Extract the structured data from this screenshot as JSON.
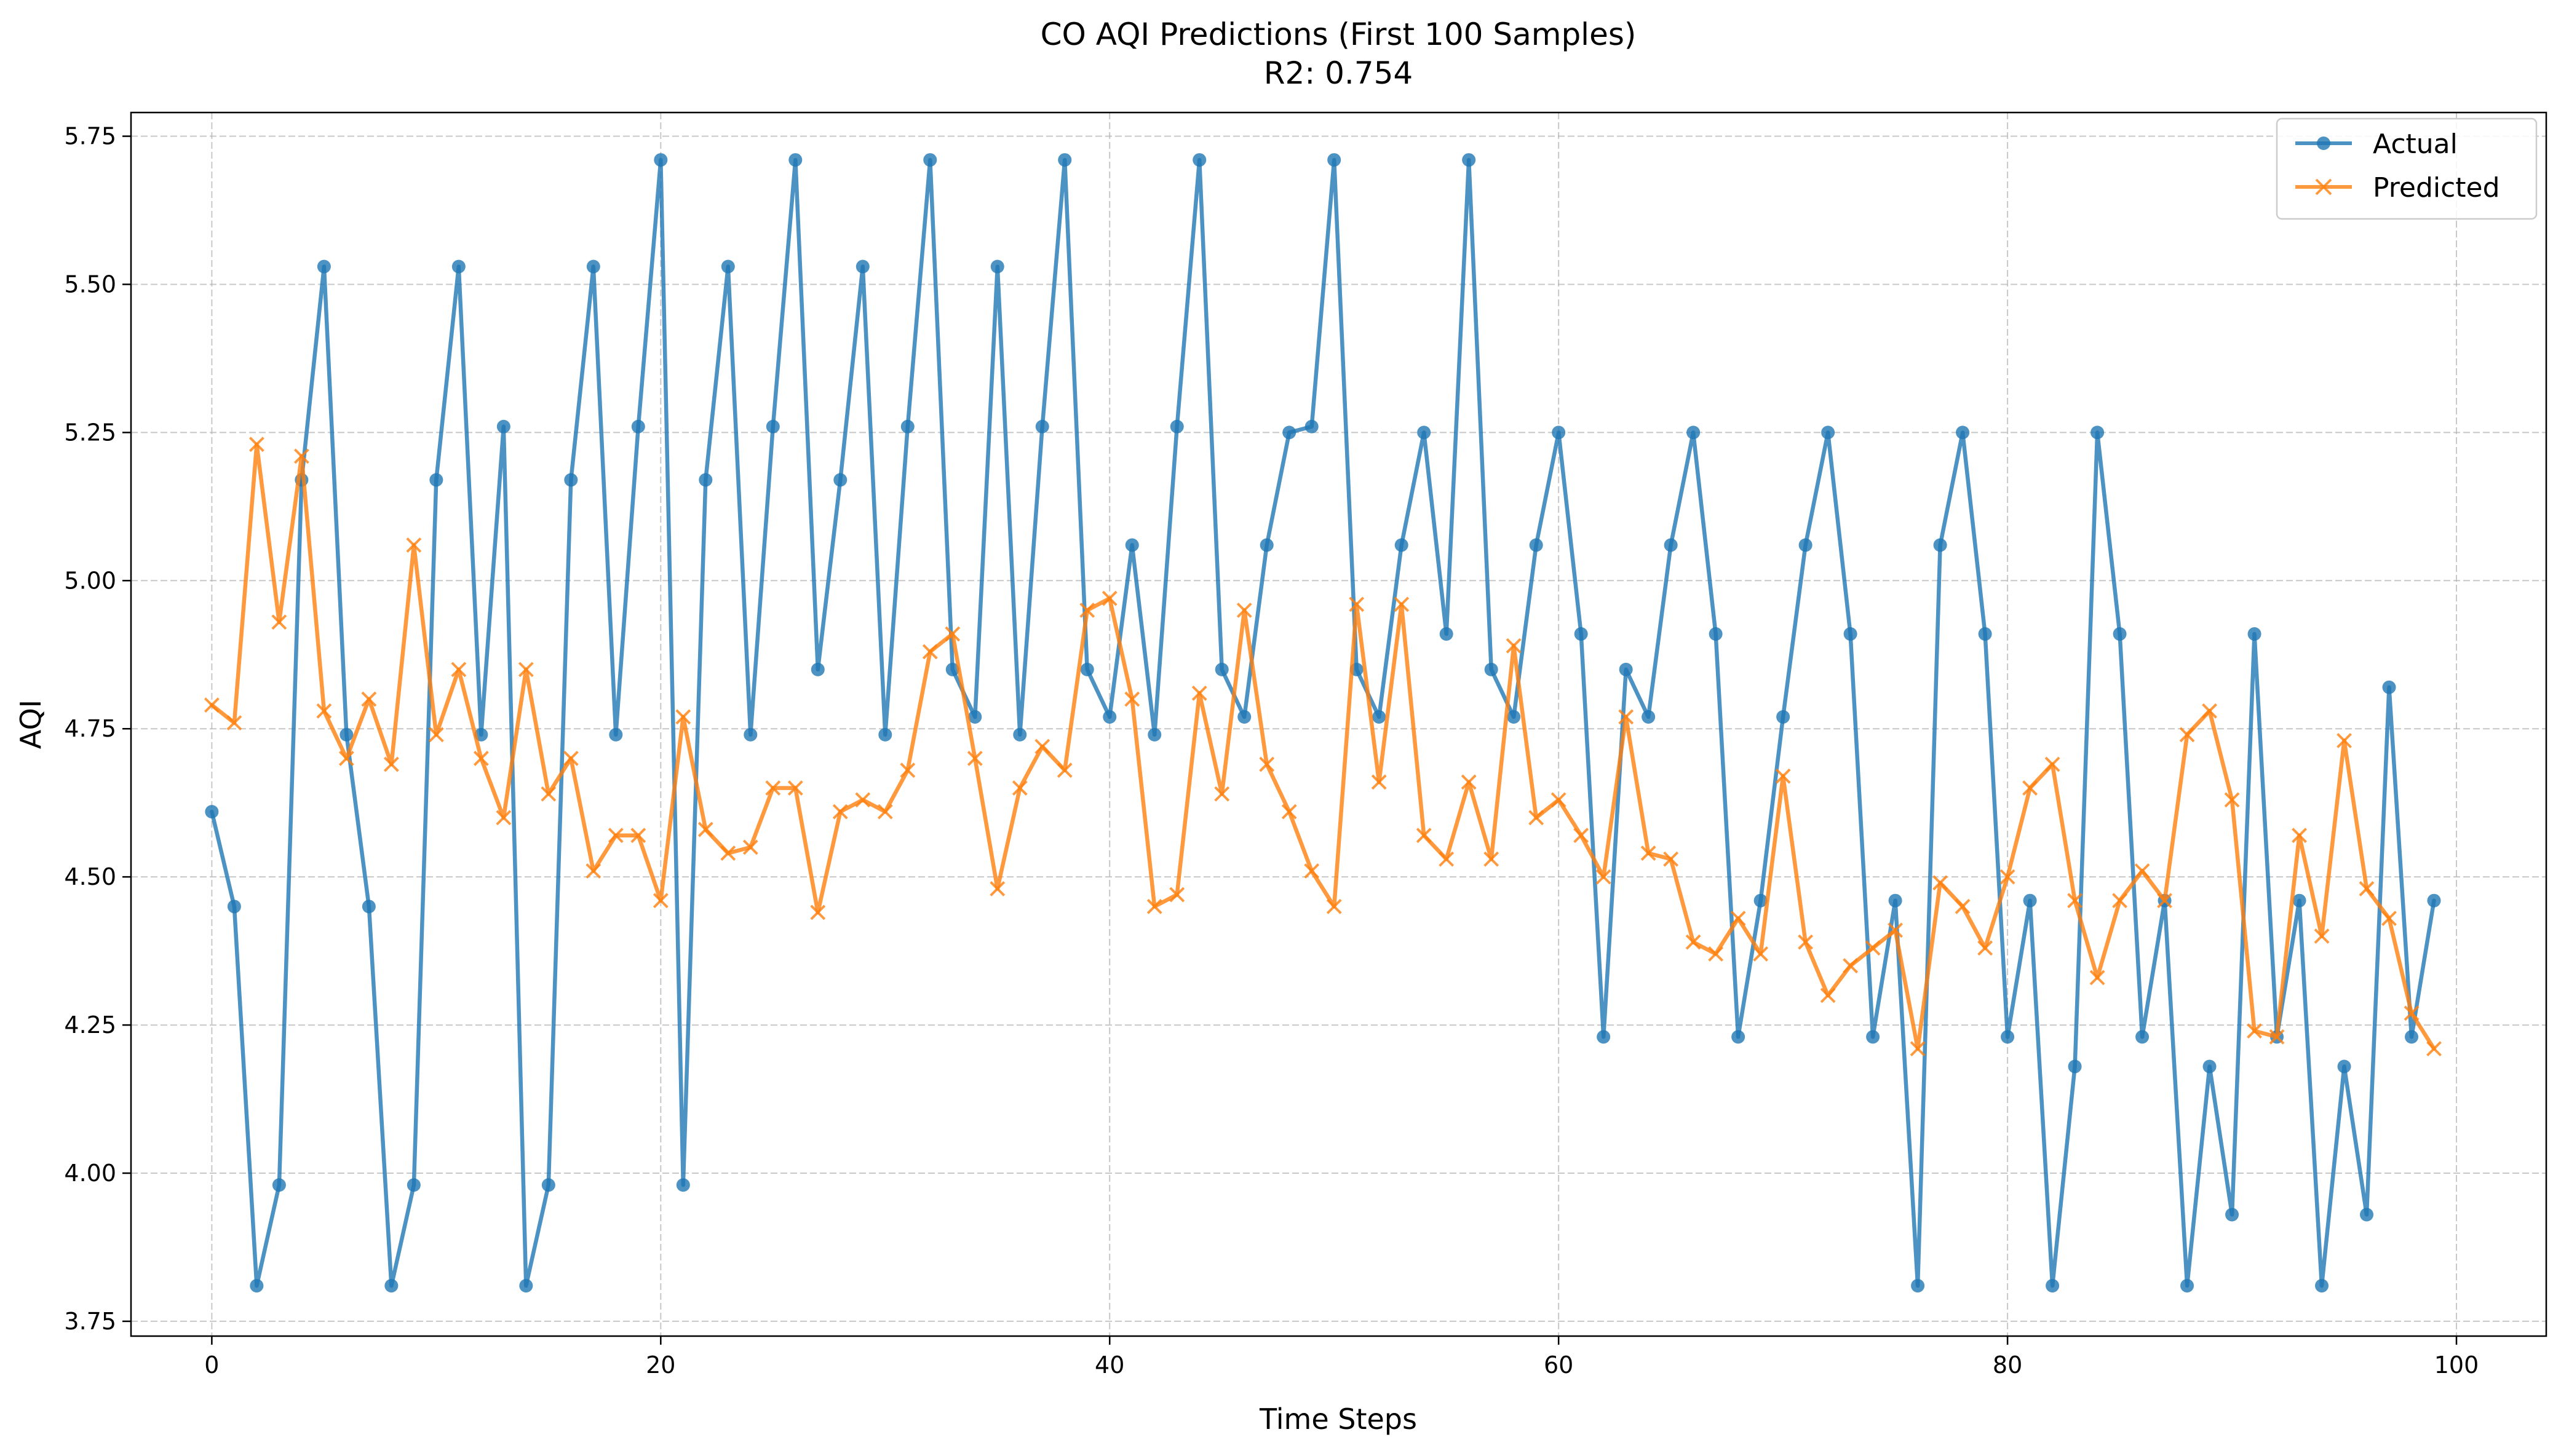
{
  "chart_data": {
    "type": "line",
    "title": "CO AQI Predictions (First 100 Samples)",
    "subtitle": "R2: 0.754",
    "xlabel": "Time Steps",
    "ylabel": "AQI",
    "xlim": [
      -3.6,
      104
    ],
    "ylim": [
      3.725,
      5.79
    ],
    "xticks": [
      0,
      20,
      40,
      60,
      80,
      100
    ],
    "yticks": [
      3.75,
      4.0,
      4.25,
      4.5,
      4.75,
      5.0,
      5.25,
      5.5,
      5.75
    ],
    "xtick_labels": [
      "0",
      "20",
      "40",
      "60",
      "80",
      "100"
    ],
    "ytick_labels": [
      "3.75",
      "4.00",
      "4.25",
      "4.50",
      "4.75",
      "5.00",
      "5.25",
      "5.50",
      "5.75"
    ],
    "grid": true,
    "legend_position": "top-right",
    "series": [
      {
        "name": "Actual",
        "color": "#1f77b4",
        "marker": "circle",
        "values": [
          4.61,
          4.45,
          3.81,
          3.98,
          5.17,
          5.53,
          4.74,
          4.45,
          3.81,
          3.98,
          5.17,
          5.53,
          4.74,
          5.26,
          3.81,
          3.98,
          5.17,
          5.53,
          4.74,
          5.26,
          5.71,
          3.98,
          5.17,
          5.53,
          4.74,
          5.26,
          5.71,
          4.85,
          5.17,
          5.53,
          4.74,
          5.26,
          5.71,
          4.85,
          4.77,
          5.53,
          4.74,
          5.26,
          5.71,
          4.85,
          4.77,
          5.06,
          4.74,
          5.26,
          5.71,
          4.85,
          4.77,
          5.06,
          5.25,
          5.26,
          5.71,
          4.85,
          4.77,
          5.06,
          5.25,
          4.91,
          5.71,
          4.85,
          4.77,
          5.06,
          5.25,
          4.91,
          4.23,
          4.85,
          4.77,
          5.06,
          5.25,
          4.91,
          4.23,
          4.46,
          4.77,
          5.06,
          5.25,
          4.91,
          4.23,
          4.46,
          3.81,
          5.06,
          5.25,
          4.91,
          4.23,
          4.46,
          3.81,
          4.18,
          5.25,
          4.91,
          4.23,
          4.46,
          3.81,
          4.18,
          3.93,
          4.91,
          4.23,
          4.46,
          3.81,
          4.18,
          3.93,
          4.82,
          4.23,
          4.46
        ]
      },
      {
        "name": "Predicted",
        "color": "#ff7f0e",
        "marker": "x",
        "values": [
          4.79,
          4.76,
          5.23,
          4.93,
          5.21,
          4.78,
          4.7,
          4.8,
          4.69,
          5.06,
          4.74,
          4.85,
          4.7,
          4.6,
          4.85,
          4.64,
          4.7,
          4.51,
          4.57,
          4.57,
          4.46,
          4.77,
          4.58,
          4.54,
          4.55,
          4.65,
          4.65,
          4.44,
          4.61,
          4.63,
          4.61,
          4.68,
          4.88,
          4.91,
          4.7,
          4.48,
          4.65,
          4.72,
          4.68,
          4.95,
          4.97,
          4.8,
          4.45,
          4.47,
          4.81,
          4.64,
          4.95,
          4.69,
          4.61,
          4.51,
          4.45,
          4.96,
          4.66,
          4.96,
          4.57,
          4.53,
          4.66,
          4.53,
          4.89,
          4.6,
          4.63,
          4.57,
          4.5,
          4.77,
          4.54,
          4.53,
          4.39,
          4.37,
          4.43,
          4.37,
          4.67,
          4.39,
          4.3,
          4.35,
          4.38,
          4.41,
          4.21,
          4.49,
          4.45,
          4.38,
          4.5,
          4.65,
          4.69,
          4.46,
          4.33,
          4.46,
          4.51,
          4.46,
          4.74,
          4.78,
          4.63,
          4.24,
          4.23,
          4.57,
          4.4,
          4.73,
          4.48,
          4.43,
          4.27,
          4.21
        ]
      }
    ]
  }
}
